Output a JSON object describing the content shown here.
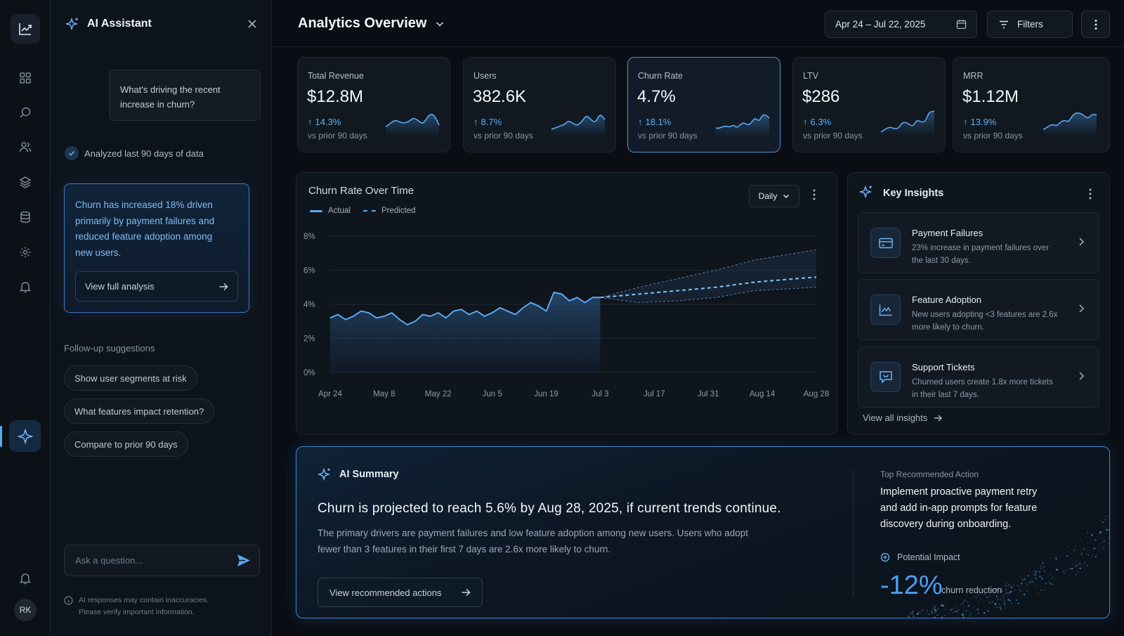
{
  "assistant": {
    "title": "AI Assistant",
    "user_question": "What's driving the recent increase in churn?",
    "analysis_status": "Analyzed last 90 days of data",
    "answer": "Churn has increased 18% driven primarily by payment failures and reduced feature adoption among new users.",
    "view_analysis_label": "View full analysis",
    "followup_label": "Follow-up suggestions",
    "suggestions": [
      "Show user segments at risk",
      "What features impact retention?",
      "Compare to prior 90 days"
    ],
    "ask_placeholder": "Ask a question...",
    "disclaimer": "AI responses may contain inaccuracies. Please verify important information."
  },
  "user": {
    "initials": "RK"
  },
  "header": {
    "title": "Analytics Overview",
    "date_range": "Apr 24 – Jul 22, 2025",
    "filters_label": "Filters"
  },
  "kpis": [
    {
      "label": "Total Revenue",
      "value": "$12.8M",
      "change": "14.3%",
      "sub": "vs prior 90 days"
    },
    {
      "label": "Users",
      "value": "382.6K",
      "change": "8.7%",
      "sub": "vs prior 90 days"
    },
    {
      "label": "Churn Rate",
      "value": "4.7%",
      "change": "18.1%",
      "sub": "vs prior 90 days"
    },
    {
      "label": "LTV",
      "value": "$286",
      "change": "6.3%",
      "sub": "vs prior 90 days"
    },
    {
      "label": "MRR",
      "value": "$1.12M",
      "change": "13.9%",
      "sub": "vs prior 90 days"
    }
  ],
  "chart": {
    "title": "Churn Rate Over Time",
    "granularity": "Daily",
    "legend_actual": "Actual",
    "legend_predicted": "Predicted"
  },
  "chart_data": {
    "type": "line",
    "x_ticks": [
      "Apr 24",
      "May 8",
      "May 22",
      "Jun 5",
      "Jun 19",
      "Jul 3",
      "Jul 17",
      "Jul 31",
      "Aug 14",
      "Aug 28"
    ],
    "y_ticks": [
      "0%",
      "2%",
      "4%",
      "6%",
      "8%"
    ],
    "ylim": [
      0,
      8
    ],
    "series": [
      {
        "name": "Actual",
        "x_day": [
          0,
          2,
          4,
          6,
          8,
          10,
          12,
          14,
          16,
          18,
          20,
          22,
          24,
          26,
          28,
          30,
          32,
          34,
          36,
          38,
          40,
          42,
          44,
          46,
          48,
          50,
          52,
          54,
          56,
          58,
          60,
          62,
          64,
          66,
          68,
          70
        ],
        "values": [
          3.2,
          3.4,
          3.1,
          3.3,
          3.6,
          3.5,
          3.2,
          3.3,
          3.5,
          3.1,
          2.8,
          3.0,
          3.4,
          3.3,
          3.5,
          3.2,
          3.6,
          3.7,
          3.4,
          3.6,
          3.3,
          3.5,
          3.8,
          3.6,
          3.4,
          3.8,
          4.1,
          3.9,
          3.6,
          4.7,
          4.6,
          4.2,
          4.4,
          4.1,
          4.4,
          4.4
        ]
      },
      {
        "name": "Predicted",
        "x_day": [
          70,
          80,
          90,
          100,
          110,
          126
        ],
        "values": [
          4.4,
          4.6,
          4.8,
          5.0,
          5.3,
          5.6
        ],
        "upper": [
          4.4,
          5.0,
          5.5,
          6.0,
          6.6,
          7.2
        ],
        "lower": [
          4.4,
          4.1,
          4.2,
          4.4,
          4.8,
          5.0
        ]
      }
    ]
  },
  "insights": {
    "title": "Key Insights",
    "items": [
      {
        "title": "Payment Failures",
        "desc": "23% increase in payment failures over the last 30 days.",
        "icon": "credit-card-icon"
      },
      {
        "title": "Feature Adoption",
        "desc": "New users adopting <3 features are 2.6x more likely to churn.",
        "icon": "line-chart-icon"
      },
      {
        "title": "Support Tickets",
        "desc": "Churned users create 1.8x more tickets in their last 7 days.",
        "icon": "message-icon"
      }
    ],
    "view_all": "View all insights"
  },
  "summary": {
    "label": "AI Summary",
    "headline": "Churn is projected to reach 5.6% by Aug 28, 2025, if current trends continue.",
    "body": "The primary drivers are payment failures and low feature adoption among new users. Users who adopt fewer than 3 features in their first 7 days are 2.6x more likely to churn.",
    "button": "View recommended actions",
    "rec_label": "Top Recommended Action",
    "rec_text": "Implement proactive payment retry and add in-app prompts for feature discovery during onboarding.",
    "impact_label": "Potential Impact",
    "impact_value": "-12%",
    "impact_sub": "churn reduction"
  },
  "colors": {
    "accent": "#5aa8f0",
    "positive": "#63aef2",
    "background": "#0a0e14",
    "card": "#111820"
  }
}
